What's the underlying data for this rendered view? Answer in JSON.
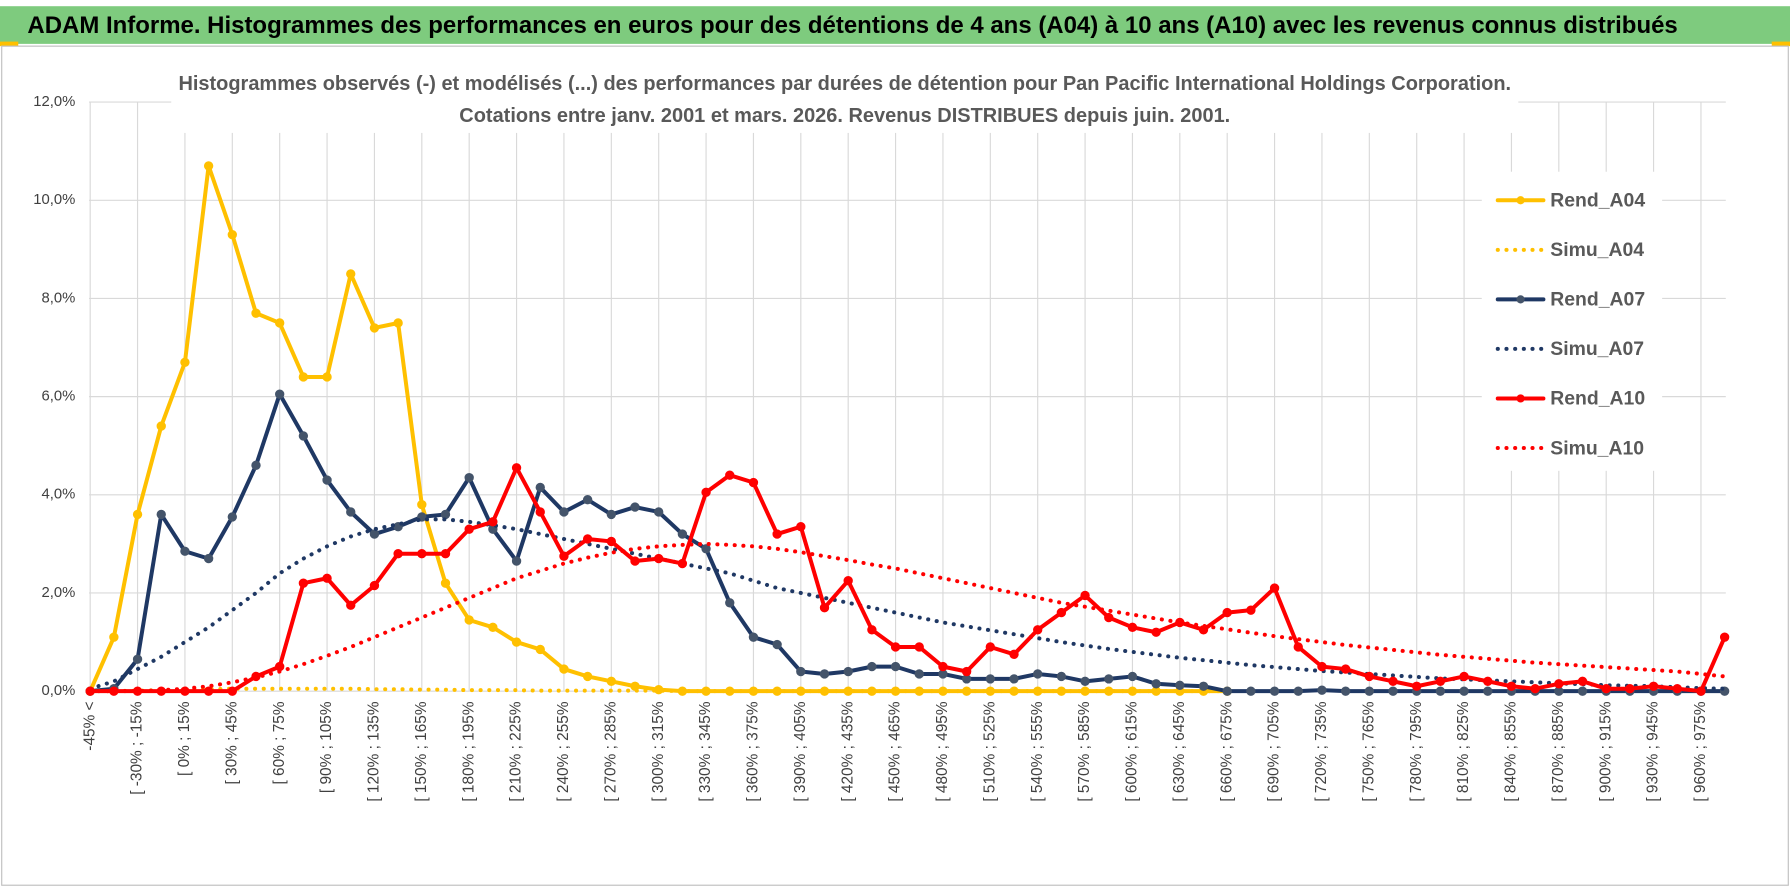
{
  "header": {
    "title": "ADAM Informe. Histogrammes des performances en euros pour des détentions de 4 ans (A04) à 10 ans (A10) avec les revenus connus distribués"
  },
  "chart_data": {
    "type": "line",
    "title": [
      "Histogrammes observés (-) et modélisés (...) des performances par durées de détention pour Pan Pacific International Holdings Corporation.",
      "Cotations entre janv. 2001 et mars. 2026. Revenus DISTRIBUES depuis juin. 2001."
    ],
    "categories": [
      "-45% <",
      null,
      "[ -30% ; -15%",
      null,
      "[ 0% ; 15%",
      null,
      "[ 30% ; 45%",
      null,
      "[ 60% ; 75%",
      null,
      "[ 90% ; 105%",
      null,
      "[ 120% ; 135%",
      null,
      "[ 150% ; 165%",
      null,
      "[ 180% ; 195%",
      null,
      "[ 210% ; 225%",
      null,
      "[ 240% ; 255%",
      null,
      "[ 270% ; 285%",
      null,
      "[ 300% ; 315%",
      null,
      "[ 330% ; 345%",
      null,
      "[ 360% ; 375%",
      null,
      "[ 390% ; 405%",
      null,
      "[ 420% ; 435%",
      null,
      "[ 450% ; 465%",
      null,
      "[ 480% ; 495%",
      null,
      "[ 510% ; 525%",
      null,
      "[ 540% ; 555%",
      null,
      "[ 570% ; 585%",
      null,
      "[ 600% ; 615%",
      null,
      "[ 630% ; 645%",
      null,
      "[ 660% ; 675%",
      null,
      "[ 690% ; 705%",
      null,
      "[ 720% ; 735%",
      null,
      "[ 750% ; 765%",
      null,
      "[ 780% ; 795%",
      null,
      "[ 810% ; 825%",
      null,
      "[ 840% ; 855%",
      null,
      "[ 870% ; 885%",
      null,
      "[ 900% ; 915%",
      null,
      "[ 930% ; 945%",
      null,
      "[ 960% ; 975%",
      null
    ],
    "series": [
      {
        "name": "Rend_A04",
        "color": "#FFC000",
        "style": "solid",
        "markers": true,
        "values": [
          0,
          1.1,
          3.6,
          5.4,
          6.7,
          10.7,
          9.3,
          7.7,
          7.5,
          6.4,
          6.4,
          8.5,
          7.4,
          7.5,
          3.8,
          2.2,
          1.45,
          1.3,
          1.0,
          0.85,
          0.45,
          0.3,
          0.2,
          0.1,
          0.03,
          0,
          0,
          0,
          0,
          0,
          0,
          0,
          0,
          0,
          0,
          0,
          0,
          0,
          0,
          0,
          0,
          0,
          0,
          0,
          0,
          0,
          0,
          0,
          0,
          null,
          null,
          null,
          null,
          null,
          null,
          null,
          null,
          null,
          null,
          null,
          null,
          null,
          null,
          null,
          null,
          null,
          null,
          null,
          null,
          null
        ]
      },
      {
        "name": "Simu_A04",
        "color": "#FFC000",
        "style": "dotted",
        "markers": false,
        "values": [
          0,
          0,
          0.01,
          0.02,
          0.03,
          0.04,
          0.05,
          0.05,
          0.05,
          0.05,
          0.05,
          0.05,
          0.04,
          0.04,
          0.03,
          0.03,
          0.02,
          0.02,
          0.02,
          0.01,
          0.01,
          0.01,
          0.01,
          0.01,
          0.01,
          0,
          0,
          0,
          0,
          0,
          0,
          0,
          0,
          0,
          0,
          0,
          0,
          0,
          0,
          0,
          0,
          0,
          0,
          0,
          0,
          0,
          0,
          0,
          0,
          null,
          null,
          null,
          null,
          null,
          null,
          null,
          null,
          null,
          null,
          null,
          null,
          null,
          null,
          null,
          null,
          null,
          null,
          null,
          null,
          null
        ]
      },
      {
        "name": "Rend_A07",
        "color": "#1F3864",
        "marker_color": "#44546A",
        "style": "solid",
        "markers": true,
        "values": [
          0,
          0.05,
          0.65,
          3.6,
          2.85,
          2.7,
          3.55,
          4.6,
          6.05,
          5.2,
          4.3,
          3.65,
          3.2,
          3.35,
          3.55,
          3.6,
          4.35,
          3.3,
          2.65,
          4.15,
          3.65,
          3.9,
          3.6,
          3.75,
          3.65,
          3.2,
          2.9,
          1.8,
          1.1,
          0.95,
          0.4,
          0.35,
          0.4,
          0.5,
          0.5,
          0.35,
          0.35,
          0.25,
          0.25,
          0.25,
          0.35,
          0.3,
          0.2,
          0.25,
          0.3,
          0.15,
          0.12,
          0.1,
          0,
          0,
          0,
          0,
          0.02,
          0,
          0,
          0,
          0,
          0,
          0,
          0,
          0,
          0,
          0,
          0,
          0,
          0,
          0,
          0,
          0,
          0
        ]
      },
      {
        "name": "Simu_A07",
        "color": "#1F3864",
        "style": "dotted",
        "markers": false,
        "values": [
          0.05,
          0.2,
          0.45,
          0.7,
          1.0,
          1.3,
          1.65,
          2.0,
          2.4,
          2.7,
          2.95,
          3.15,
          3.3,
          3.4,
          3.5,
          3.5,
          3.45,
          3.38,
          3.3,
          3.2,
          3.1,
          3.0,
          2.9,
          2.8,
          2.7,
          2.6,
          2.5,
          2.4,
          2.25,
          2.1,
          2.0,
          1.9,
          1.8,
          1.7,
          1.6,
          1.5,
          1.4,
          1.32,
          1.24,
          1.16,
          1.08,
          1.0,
          0.93,
          0.86,
          0.8,
          0.74,
          0.68,
          0.63,
          0.58,
          0.53,
          0.49,
          0.45,
          0.41,
          0.38,
          0.35,
          0.32,
          0.29,
          0.26,
          0.24,
          0.22,
          0.2,
          0.18,
          0.16,
          0.14,
          0.12,
          0.11,
          0.1,
          0.08,
          0.06,
          0.05
        ]
      },
      {
        "name": "Rend_A10",
        "color": "#FF0000",
        "style": "solid",
        "markers": true,
        "values": [
          0,
          0,
          0,
          0,
          0,
          0,
          0,
          0.3,
          0.5,
          2.2,
          2.3,
          1.75,
          2.15,
          2.8,
          2.8,
          2.8,
          3.3,
          3.45,
          4.55,
          3.65,
          2.75,
          3.1,
          3.05,
          2.65,
          2.7,
          2.6,
          4.05,
          4.4,
          4.25,
          3.2,
          3.35,
          1.7,
          2.25,
          1.25,
          0.9,
          0.9,
          0.5,
          0.4,
          0.9,
          0.75,
          1.25,
          1.6,
          1.95,
          1.5,
          1.3,
          1.2,
          1.4,
          1.25,
          1.6,
          1.65,
          2.1,
          0.9,
          0.5,
          0.45,
          0.3,
          0.2,
          0.1,
          0.2,
          0.3,
          0.2,
          0.1,
          0.05,
          0.15,
          0.2,
          0.05,
          0.05,
          0.1,
          0.05,
          0,
          1.1
        ]
      },
      {
        "name": "Simu_A10",
        "color": "#FF0000",
        "style": "dotted",
        "markers": false,
        "values": [
          0,
          0,
          0,
          0.02,
          0.05,
          0.1,
          0.18,
          0.28,
          0.4,
          0.55,
          0.72,
          0.9,
          1.1,
          1.3,
          1.5,
          1.7,
          1.9,
          2.1,
          2.3,
          2.45,
          2.6,
          2.72,
          2.82,
          2.9,
          2.95,
          2.98,
          3.0,
          2.98,
          2.95,
          2.9,
          2.83,
          2.75,
          2.67,
          2.58,
          2.5,
          2.4,
          2.3,
          2.2,
          2.1,
          2.0,
          1.9,
          1.8,
          1.72,
          1.64,
          1.56,
          1.48,
          1.4,
          1.33,
          1.26,
          1.19,
          1.12,
          1.06,
          1.0,
          0.94,
          0.89,
          0.84,
          0.79,
          0.74,
          0.7,
          0.66,
          0.62,
          0.58,
          0.55,
          0.52,
          0.49,
          0.46,
          0.43,
          0.4,
          0.35,
          0.3
        ]
      }
    ],
    "ylim": [
      0,
      12
    ],
    "yticks": [
      {
        "value": 0,
        "label": "0,0%"
      },
      {
        "value": 2,
        "label": "2,0%"
      },
      {
        "value": 4,
        "label": "4,0%"
      },
      {
        "value": 6,
        "label": "6,0%"
      },
      {
        "value": 8,
        "label": "8,0%"
      },
      {
        "value": 10,
        "label": "10,0%"
      },
      {
        "value": 12,
        "label": "12,0%"
      }
    ],
    "grid": true,
    "legend": "right"
  }
}
